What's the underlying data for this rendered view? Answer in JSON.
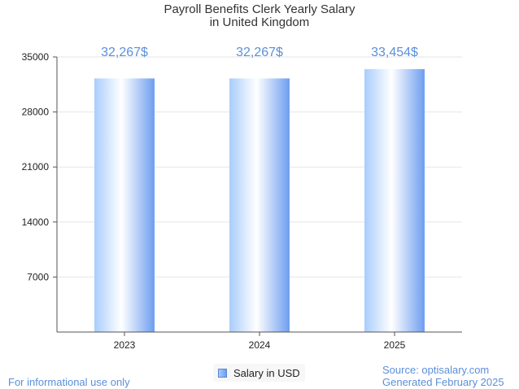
{
  "chart_data": {
    "type": "bar",
    "title_line1": "Payroll Benefits Clerk Yearly Salary",
    "title_line2": "in United Kingdom",
    "categories": [
      "2023",
      "2024",
      "2025"
    ],
    "values": [
      32267,
      32267,
      33454
    ],
    "value_labels": [
      "32,267$",
      "32,267$",
      "33,454$"
    ],
    "yticks": [
      7000,
      14000,
      21000,
      28000,
      35000
    ],
    "ytick_labels": [
      "7000",
      "14000",
      "21000",
      "28000",
      "35000"
    ],
    "ylim": [
      0,
      35000
    ],
    "legend": "Salary in USD",
    "xlabel": "",
    "ylabel": "",
    "grid": true
  },
  "footer": {
    "left": "For informational use only",
    "source": "Source: optisalary.com",
    "generated": "Generated February 2025"
  },
  "colors": {
    "bar_light": "#ffffff",
    "bar_mid": "#a9cdfc",
    "bar_dark": "#6e9ef0",
    "value_label": "#5b8fd9",
    "grid": "#e6e6e6",
    "axis": "#555555"
  }
}
